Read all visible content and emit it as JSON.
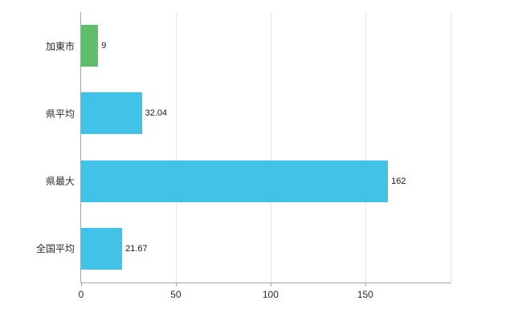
{
  "chart_data": {
    "type": "bar",
    "orientation": "horizontal",
    "title": "",
    "xlabel": "",
    "ylabel": "",
    "categories": [
      "加東市",
      "県平均",
      "県最大",
      "全国平均"
    ],
    "values": [
      9,
      32.04,
      162,
      21.67
    ],
    "value_labels": [
      "9",
      "32.04",
      "162",
      "21.67"
    ],
    "bar_colors": [
      "#5fbe6a",
      "#41c2e8",
      "#41c2e8",
      "#41c2e8"
    ],
    "xlim": [
      0,
      195
    ],
    "x_ticks": [
      0,
      50,
      100,
      150
    ],
    "grid": "vertical-gridlines",
    "legend": "none"
  },
  "colors": {
    "background": "#ffffff",
    "axis": "#a6a6a6",
    "gridline": "#e6e6e6",
    "text": "#2b2b2b",
    "green_bar": "#5fbe6a",
    "blue_bar": "#41c2e8"
  }
}
